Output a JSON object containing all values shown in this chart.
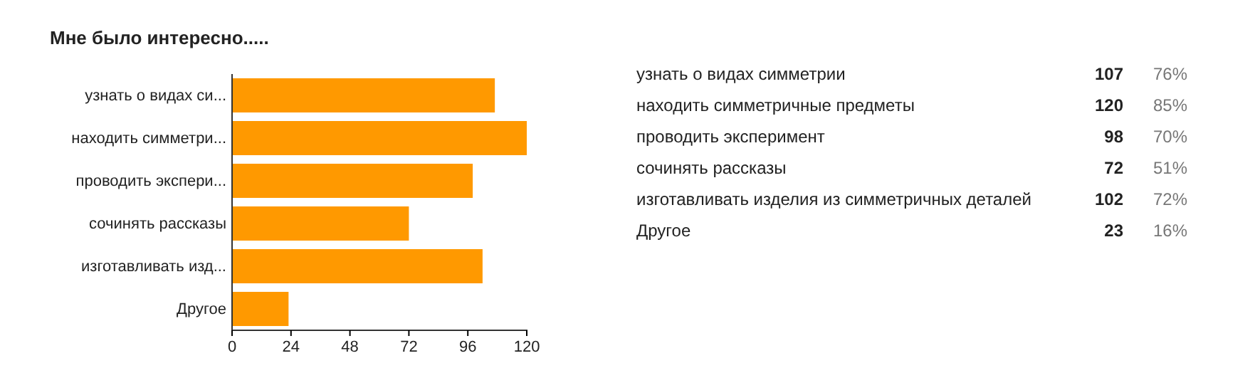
{
  "chart_data": {
    "type": "bar",
    "title": "Мне было интересно.....",
    "orientation": "horizontal",
    "categories": [
      "узнать о видах си...",
      "находить симметри...",
      "проводить экспери...",
      "сочинять рассказы",
      "изготавливать изд...",
      "Другое"
    ],
    "values": [
      107,
      120,
      98,
      72,
      102,
      23
    ],
    "color": "#ff9900",
    "xlim": [
      0,
      120
    ],
    "xticks": [
      0,
      24,
      48,
      72,
      96,
      120
    ],
    "annotations": [
      "узнать о видах симметрии",
      "находить симметричные предметы",
      "проводить эксперимент",
      "сочинять рассказы",
      "изготавливать изделия из симметричных деталей",
      "Другое",
      "107",
      "120",
      "98",
      "72",
      "102",
      "23",
      "76%",
      "85%",
      "70%",
      "51%",
      "72%",
      "16%"
    ]
  }
}
